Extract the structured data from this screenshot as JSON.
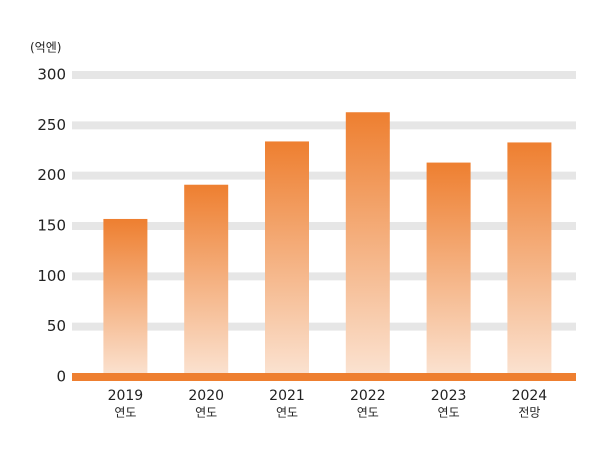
{
  "chart_data": {
    "type": "bar",
    "unit_label": "(억엔)",
    "categories": [
      "2019",
      "2020",
      "2021",
      "2022",
      "2023",
      "2024"
    ],
    "category_sublabels": [
      "연도",
      "연도",
      "연도",
      "연도",
      "연도",
      "전망"
    ],
    "values": [
      157,
      191,
      234,
      263,
      213,
      233
    ],
    "color": "#ee7f30",
    "ylim": [
      0,
      300
    ],
    "yticks": [
      0,
      50,
      100,
      150,
      200,
      250,
      300
    ],
    "grid": true
  }
}
